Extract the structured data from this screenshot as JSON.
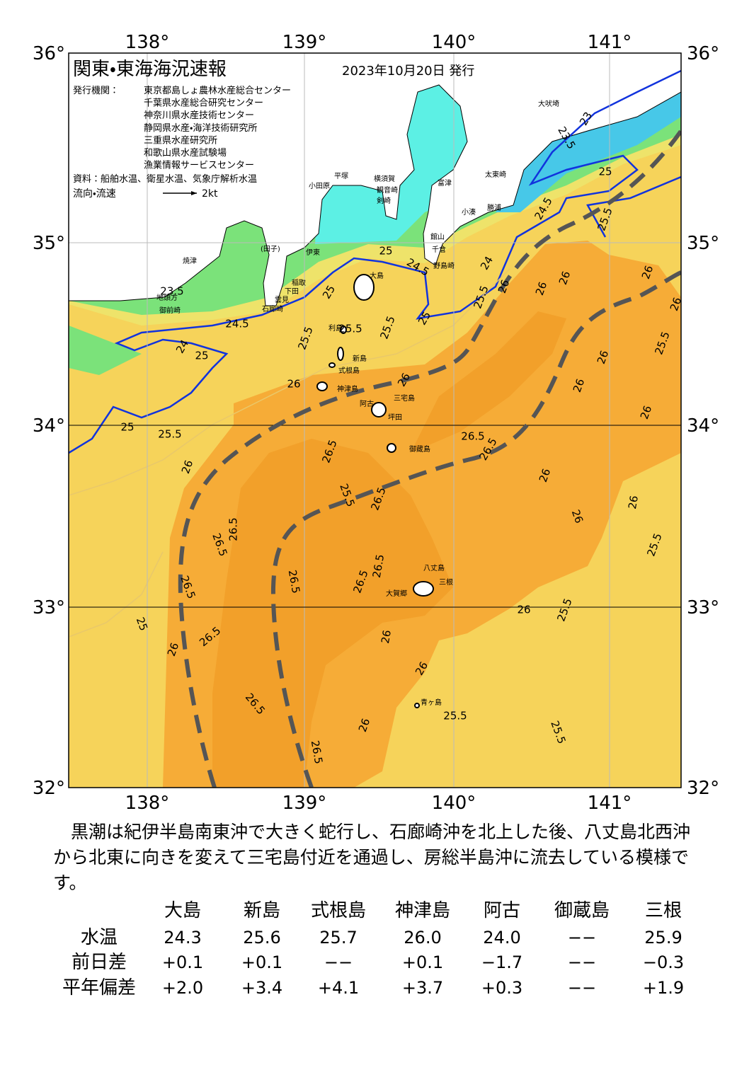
{
  "header": {
    "title": "関東・東海海況速報",
    "date": "2023年10月20日 発行",
    "issuer_label": "発行機関：",
    "issuers": [
      "東京都島しょ農林水産総合センター",
      "千葉県水産総合研究センター",
      "神奈川県水産技術センター",
      "静岡県水産・海洋技術研究所",
      "三重県水産研究所",
      "和歌山県水産試験場",
      "漁業情報サービスセンター"
    ],
    "source": "資料：船舶水温、衛星水温、気象庁解析水温",
    "legend_label": "流向・流速",
    "legend_unit": "2kt"
  },
  "axes": {
    "lon_labels": [
      "138°",
      "139°",
      "140°",
      "141°"
    ],
    "lat_labels": [
      "36°",
      "35°",
      "34°",
      "33°",
      "32°"
    ]
  },
  "places": [
    "大吠埼",
    "太東崎",
    "勝浦",
    "小湊",
    "富津",
    "館山",
    "千倉",
    "野島崎",
    "横須賀",
    "観音崎",
    "剣崎",
    "平塚",
    "小田原",
    "伊東",
    "(田子)",
    "稲取",
    "下田",
    "雲見",
    "石廊崎",
    "焼津",
    "地頭方",
    "御前崎",
    "大島",
    "利島",
    "新島",
    "式根島",
    "神津島",
    "三宅島",
    "阿古",
    "坪田",
    "御蔵島",
    "八丈島",
    "三根",
    "大賀郷",
    "青ヶ島"
  ],
  "contour_labels": [
    "23",
    "23.5",
    "25",
    "24.5",
    "25.5",
    "24.5",
    "25",
    "24",
    "25.5",
    "26",
    "26",
    "26",
    "26",
    "26",
    "25.5",
    "26",
    "26",
    "26",
    "23.5",
    "24.5",
    "25",
    "24",
    "25",
    "25",
    "25.5",
    "25.5",
    "25.5",
    "25.5",
    "25",
    "26",
    "26",
    "26.5",
    "26.5",
    "26.5",
    "26",
    "25.5",
    "26.5",
    "26.5",
    "26.5",
    "26.5",
    "26.5",
    "26.5",
    "26.5",
    "26",
    "26",
    "26",
    "25.5",
    "26",
    "25.5",
    "25",
    "26",
    "26.5",
    "26",
    "26",
    "26.5",
    "25.5",
    "25.5",
    "26",
    "26.5"
  ],
  "summary": "黒潮は紀伊半島南東沖で大きく蛇行し、石廊崎沖を北上した後、八丈島北西沖から北東に向きを変えて三宅島付近を通過し、房総半島沖に流去している模様です。",
  "table": {
    "columns": [
      "大島",
      "新島",
      "式根島",
      "神津島",
      "阿古",
      "御蔵島",
      "三根"
    ],
    "rows": [
      {
        "label": "水温",
        "cells": [
          "24.3",
          "25.6",
          "25.7",
          "26.0",
          "24.0",
          "−−",
          "25.9"
        ]
      },
      {
        "label": "前日差",
        "cells": [
          "+0.1",
          "+0.1",
          "−−",
          "+0.1",
          "−1.7",
          "−−",
          "−0.3"
        ]
      },
      {
        "label": "平年偏差",
        "cells": [
          "+2.0",
          "+3.4",
          "+4.1",
          "+3.7",
          "+0.3",
          "−−",
          "+1.9"
        ]
      }
    ]
  }
}
